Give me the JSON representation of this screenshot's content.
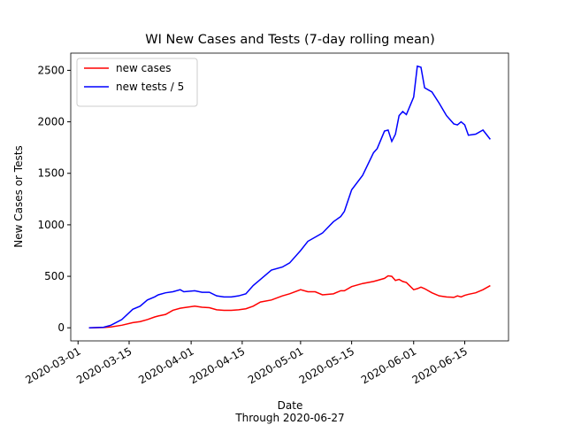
{
  "chart_data": {
    "type": "line",
    "title": "WI New Cases and Tests (7-day rolling mean)",
    "x_label": "Date",
    "x_sublabel": "Through 2020-06-27",
    "y_label": "New Cases or Tests",
    "x": [
      "2020-03-04",
      "2020-03-08",
      "2020-03-10",
      "2020-03-13",
      "2020-03-16",
      "2020-03-18",
      "2020-03-20",
      "2020-03-22",
      "2020-03-23",
      "2020-03-25",
      "2020-03-27",
      "2020-03-29",
      "2020-03-30",
      "2020-04-02",
      "2020-04-04",
      "2020-04-06",
      "2020-04-08",
      "2020-04-10",
      "2020-04-12",
      "2020-04-14",
      "2020-04-16",
      "2020-04-18",
      "2020-04-20",
      "2020-04-23",
      "2020-04-26",
      "2020-04-28",
      "2020-05-01",
      "2020-05-03",
      "2020-05-05",
      "2020-05-07",
      "2020-05-10",
      "2020-05-12",
      "2020-05-13",
      "2020-05-15",
      "2020-05-18",
      "2020-05-21",
      "2020-05-22",
      "2020-05-24",
      "2020-05-25",
      "2020-05-26",
      "2020-05-27",
      "2020-05-28",
      "2020-05-29",
      "2020-05-30",
      "2020-06-01",
      "2020-06-02",
      "2020-06-03",
      "2020-06-04",
      "2020-06-06",
      "2020-06-08",
      "2020-06-10",
      "2020-06-12",
      "2020-06-13",
      "2020-06-14",
      "2020-06-15",
      "2020-06-16",
      "2020-06-18",
      "2020-06-20",
      "2020-06-22"
    ],
    "series": [
      {
        "name": "new cases",
        "color": "#ff0000",
        "values": [
          0,
          3,
          8,
          25,
          50,
          60,
          80,
          105,
          115,
          130,
          170,
          190,
          195,
          210,
          200,
          195,
          175,
          170,
          170,
          175,
          185,
          210,
          250,
          270,
          310,
          330,
          370,
          350,
          350,
          320,
          330,
          360,
          360,
          400,
          430,
          450,
          460,
          480,
          505,
          500,
          460,
          470,
          450,
          440,
          370,
          380,
          395,
          380,
          340,
          310,
          300,
          295,
          310,
          300,
          315,
          325,
          340,
          370,
          410
        ]
      },
      {
        "name": "new tests / 5",
        "color": "#0000ff",
        "values": [
          0,
          5,
          25,
          80,
          180,
          210,
          270,
          300,
          320,
          340,
          350,
          370,
          350,
          360,
          345,
          345,
          310,
          300,
          300,
          310,
          330,
          410,
          470,
          560,
          590,
          630,
          750,
          840,
          880,
          920,
          1030,
          1080,
          1130,
          1340,
          1480,
          1700,
          1740,
          1910,
          1920,
          1810,
          1880,
          2060,
          2100,
          2070,
          2240,
          2540,
          2530,
          2330,
          2290,
          2180,
          2060,
          1980,
          1970,
          2000,
          1970,
          1870,
          1880,
          1920,
          1830
        ]
      }
    ],
    "xlim": [
      "2020-02-28",
      "2020-06-27"
    ],
    "xticks": [
      "2020-03-01",
      "2020-03-15",
      "2020-04-01",
      "2020-04-15",
      "2020-05-01",
      "2020-05-15",
      "2020-06-01",
      "2020-06-15"
    ],
    "ylim": [
      -127,
      2667
    ],
    "yticks": [
      0,
      500,
      1000,
      1500,
      2000,
      2500
    ],
    "grid": false,
    "legend": "upper-left"
  }
}
